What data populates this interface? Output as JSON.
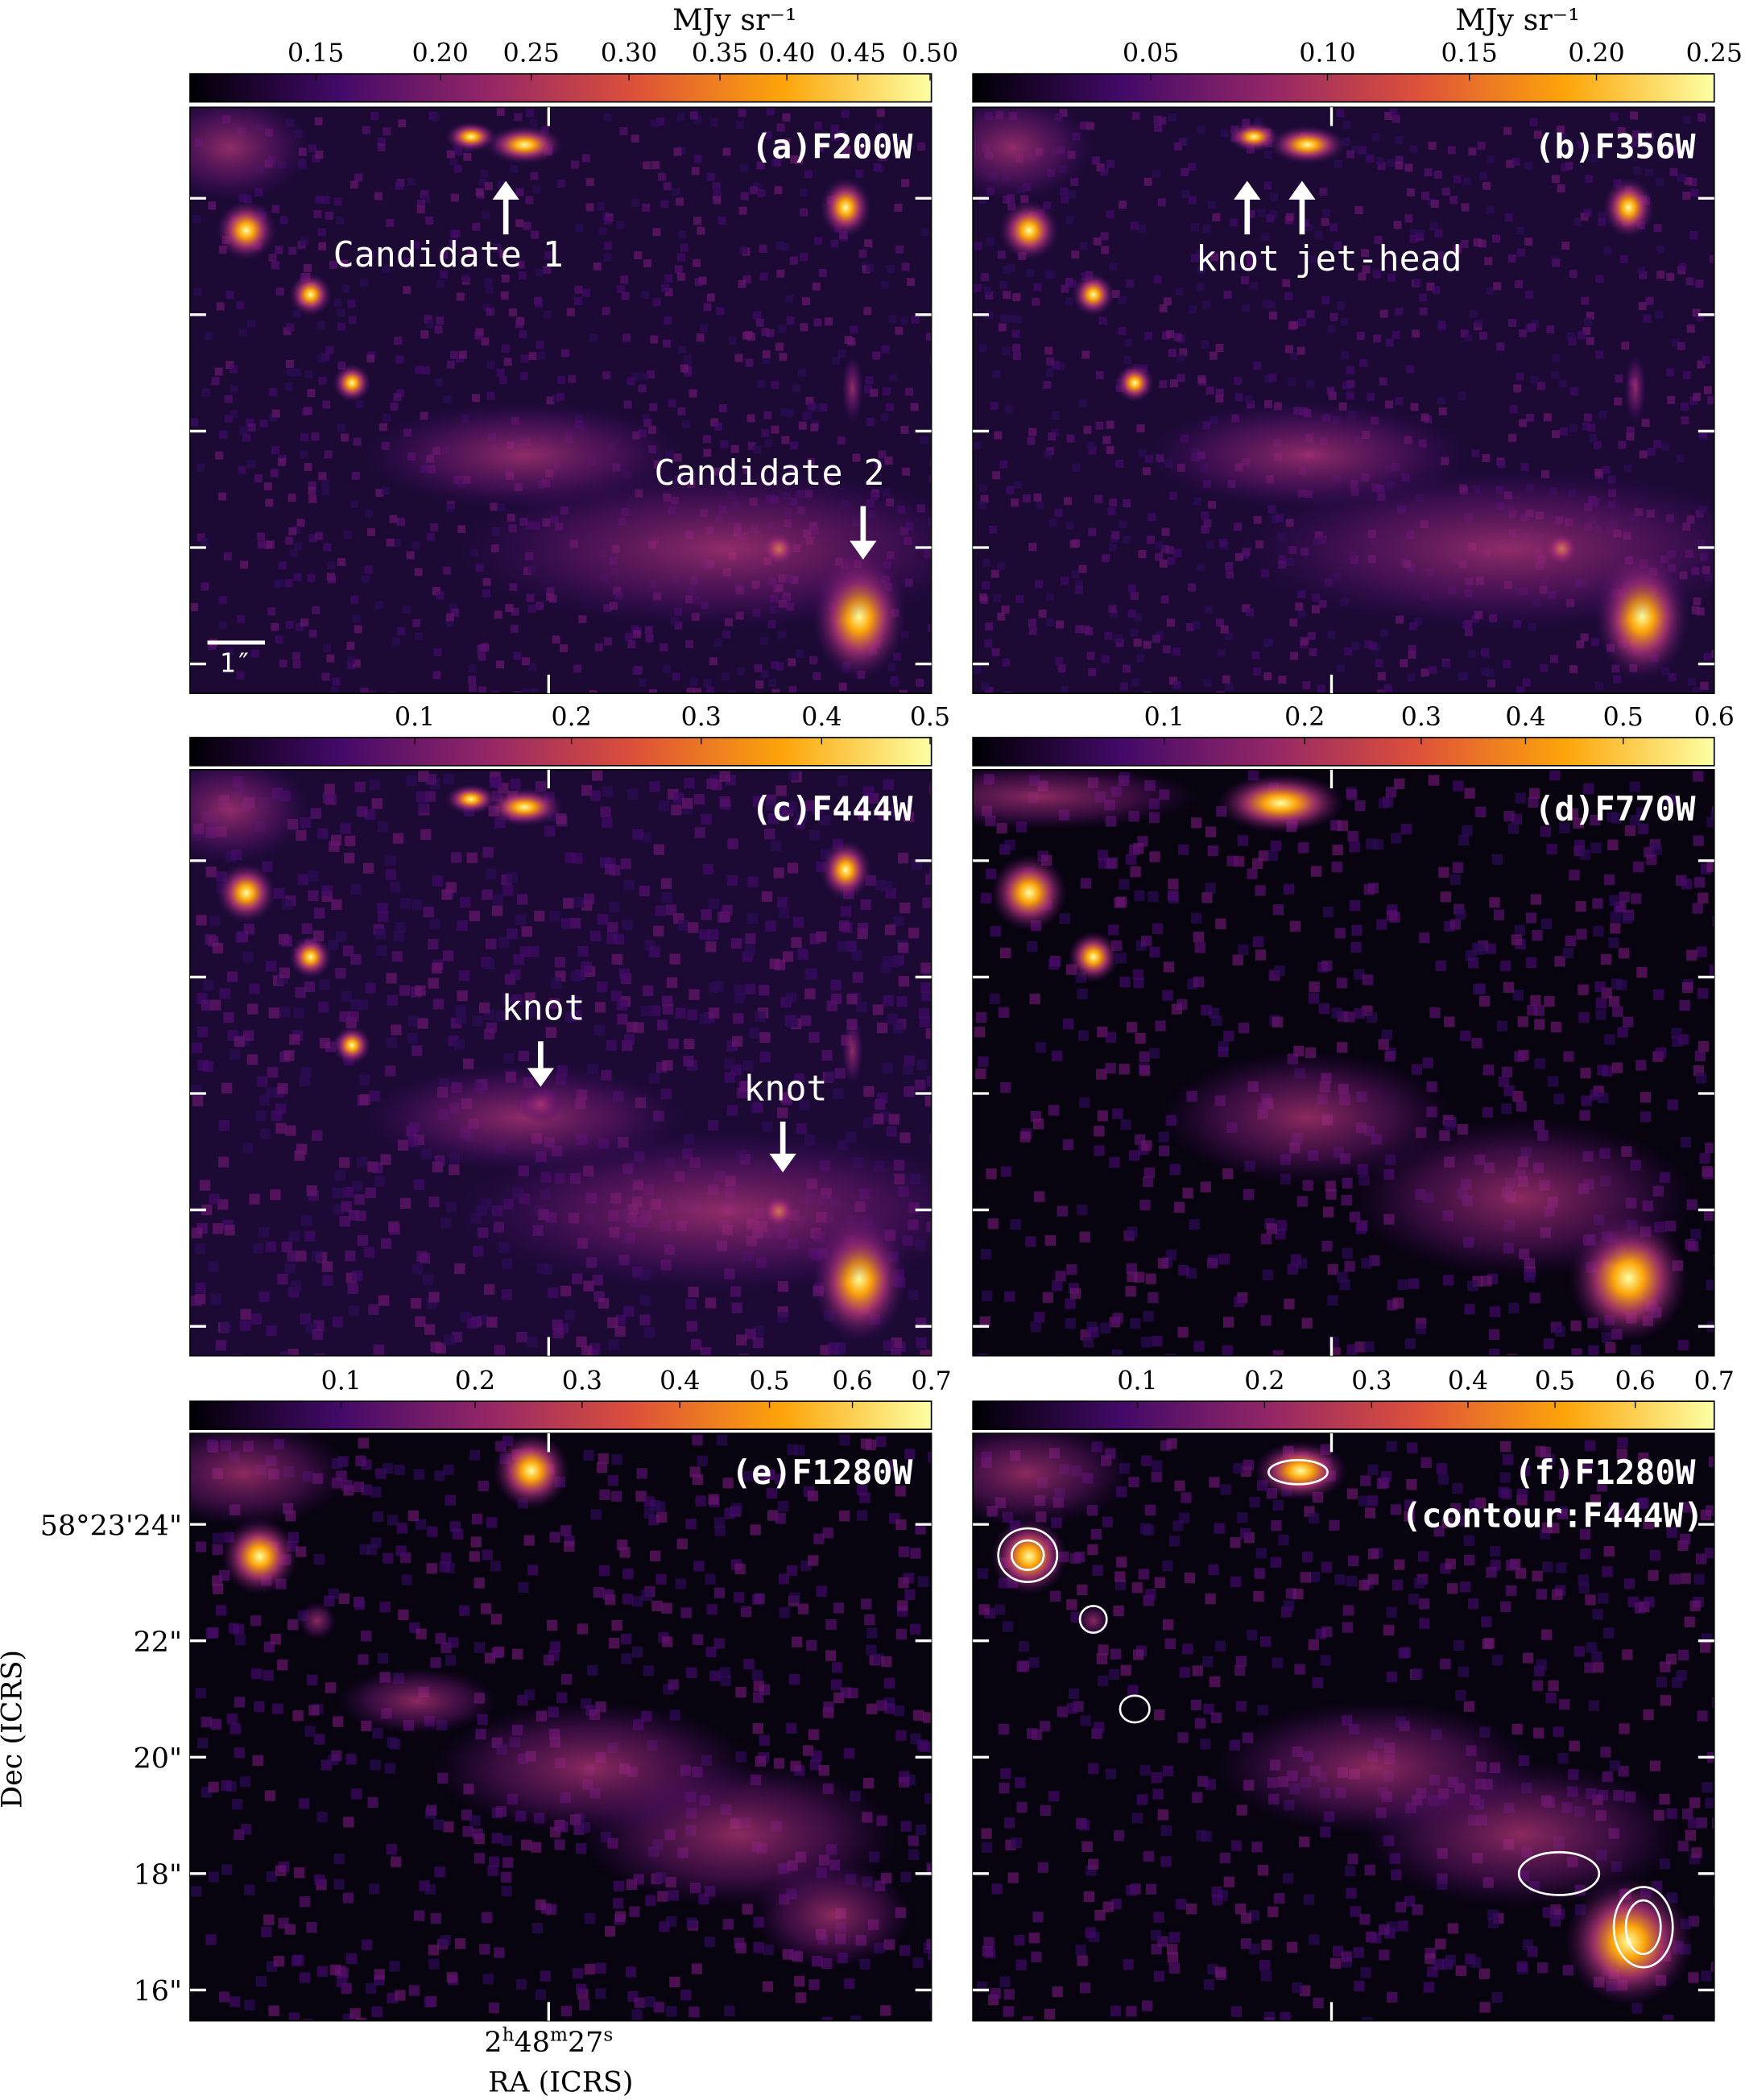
{
  "figure": {
    "colorbar_unit": "MJy sr⁻¹",
    "panels": [
      {
        "id": "a",
        "label": "(a)F200W",
        "ticks": [
          "0.15",
          "0.20",
          "0.25",
          "0.30",
          "0.35",
          "0.40",
          "0.45",
          "0.50"
        ],
        "annotations": [
          {
            "text": "Candidate 1"
          },
          {
            "text": "Candidate 2"
          }
        ],
        "scale_bar": "1″"
      },
      {
        "id": "b",
        "label": "(b)F356W",
        "ticks": [
          "0.05",
          "0.10",
          "0.15",
          "0.20",
          "0.25"
        ],
        "annotations": [
          {
            "text": "knot"
          },
          {
            "text": "jet-head"
          }
        ]
      },
      {
        "id": "c",
        "label": "(c)F444W",
        "ticks": [
          "0.1",
          "0.2",
          "0.3",
          "0.4",
          "0.5"
        ],
        "annotations": [
          {
            "text": "knot"
          },
          {
            "text": "knot"
          }
        ]
      },
      {
        "id": "d",
        "label": "(d)F770W",
        "ticks": [
          "0.1",
          "0.2",
          "0.3",
          "0.4",
          "0.5",
          "0.6"
        ],
        "annotations": []
      },
      {
        "id": "e",
        "label": "(e)F1280W",
        "ticks": [
          "0.1",
          "0.2",
          "0.3",
          "0.4",
          "0.5",
          "0.6",
          "0.7"
        ],
        "annotations": []
      },
      {
        "id": "f",
        "label": "(f)F1280W",
        "label2": "(contour:F444W)",
        "ticks": [
          "0.1",
          "0.2",
          "0.3",
          "0.4",
          "0.5",
          "0.6",
          "0.7"
        ],
        "annotations": []
      }
    ],
    "axes": {
      "dec_label": "Dec (ICRS)",
      "dec_ticks": [
        "58°23'24\"",
        "22\"",
        "20\"",
        "18\"",
        "16\""
      ],
      "ra_label": "RA (ICRS)",
      "ra_tick": {
        "h": "2",
        "m": "48",
        "s": "27"
      }
    },
    "colormap": [
      "#000004",
      "#420a68",
      "#932667",
      "#dd513a",
      "#fca50a",
      "#fcffa4"
    ]
  }
}
